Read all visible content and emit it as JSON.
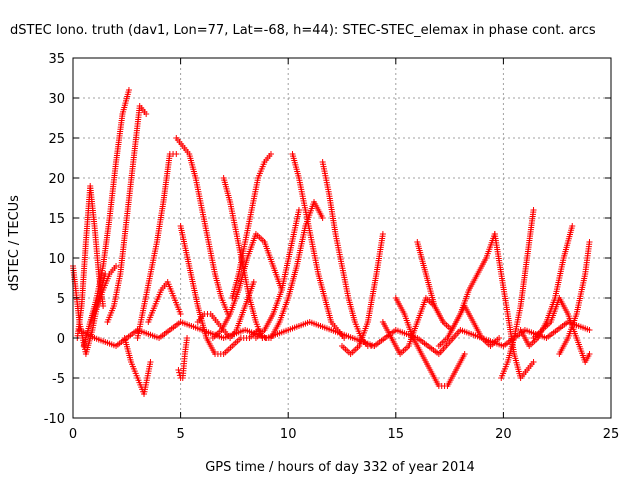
{
  "chart_data": {
    "type": "scatter",
    "title": "dSTEC Iono. truth (dav1, Lon=77, Lat=-68, h=44): STEC-STEC_elemax in phase cont. arcs",
    "xlabel": "GPS time / hours of day 332 of year 2014",
    "ylabel": "dSTEC  / TECUs",
    "xlim": [
      0,
      25
    ],
    "ylim": [
      -10,
      35
    ],
    "xticks": [
      0,
      5,
      10,
      15,
      20,
      25
    ],
    "yticks": [
      -10,
      -5,
      0,
      5,
      10,
      15,
      20,
      25,
      30,
      35
    ],
    "grid": true,
    "marker": "plus",
    "color": "#ff0000",
    "series": [
      {
        "x": [
          0.0,
          0.3,
          0.6,
          0.9,
          1.2,
          1.5
        ],
        "y": [
          9,
          2,
          -2,
          1,
          5,
          8
        ]
      },
      {
        "x": [
          0.2,
          0.4,
          0.6,
          0.8,
          1.0,
          1.2,
          1.4
        ],
        "y": [
          0,
          4,
          12,
          19,
          14,
          8,
          4
        ]
      },
      {
        "x": [
          0.8,
          1.1,
          1.4,
          1.7,
          2.0,
          2.3,
          2.6
        ],
        "y": [
          2,
          5,
          9,
          15,
          22,
          28,
          31
        ]
      },
      {
        "x": [
          0.5,
          0.8,
          1.1,
          1.4,
          1.7,
          2.0
        ],
        "y": [
          -1,
          2,
          4,
          6,
          8,
          9
        ]
      },
      {
        "x": [
          1.6,
          1.9,
          2.2,
          2.5,
          2.8,
          3.1,
          3.4
        ],
        "y": [
          2,
          4,
          8,
          15,
          22,
          29,
          28
        ]
      },
      {
        "x": [
          2.4,
          2.7,
          3.0,
          3.3,
          3.6
        ],
        "y": [
          0,
          -3,
          -5,
          -7,
          -3
        ]
      },
      {
        "x": [
          3.0,
          3.3,
          3.6,
          3.9,
          4.2,
          4.5,
          4.8
        ],
        "y": [
          0,
          4,
          8,
          12,
          17,
          23,
          23
        ]
      },
      {
        "x": [
          3.5,
          3.8,
          4.1,
          4.4,
          4.7,
          5.0
        ],
        "y": [
          2,
          4,
          6,
          7,
          5,
          3
        ]
      },
      {
        "x": [
          4.9,
          5.0,
          5.1,
          5.2,
          5.3
        ],
        "y": [
          -4,
          -5,
          -5,
          -2,
          0
        ]
      },
      {
        "x": [
          4.8,
          5.1,
          5.4,
          5.7,
          6.0,
          6.3,
          6.6,
          6.9,
          7.2
        ],
        "y": [
          25,
          24,
          23,
          20,
          16,
          12,
          8,
          5,
          3
        ]
      },
      {
        "x": [
          5.0,
          5.4,
          5.8,
          6.2,
          6.6,
          7.0,
          7.4,
          7.8,
          8.2,
          8.6
        ],
        "y": [
          14,
          9,
          4,
          0,
          -2,
          -2,
          -1,
          0,
          0,
          1
        ]
      },
      {
        "x": [
          5.8,
          6.1,
          6.4,
          6.7,
          7.0,
          7.3,
          7.6,
          8.0,
          8.4
        ],
        "y": [
          2,
          3,
          3,
          2,
          1,
          0,
          1,
          4,
          7
        ]
      },
      {
        "x": [
          7.0,
          7.3,
          7.6,
          7.9,
          8.2,
          8.5,
          8.8,
          9.1
        ],
        "y": [
          20,
          17,
          13,
          9,
          5,
          2,
          0,
          0
        ]
      },
      {
        "x": [
          7.4,
          7.7,
          8.0,
          8.3,
          8.6,
          8.9,
          9.2
        ],
        "y": [
          5,
          8,
          12,
          16,
          20,
          22,
          23
        ]
      },
      {
        "x": [
          6.5,
          6.9,
          7.3,
          7.7,
          8.1,
          8.5,
          8.9,
          9.3,
          9.7
        ],
        "y": [
          0,
          1,
          3,
          6,
          10,
          13,
          12,
          9,
          6
        ]
      },
      {
        "x": [
          8.5,
          8.9,
          9.3,
          9.7,
          10.1,
          10.5
        ],
        "y": [
          0,
          1,
          3,
          6,
          11,
          16
        ]
      },
      {
        "x": [
          10.2,
          10.5,
          10.8,
          11.1,
          11.4,
          11.7,
          12.0,
          12.3,
          12.6
        ],
        "y": [
          23,
          20,
          16,
          12,
          8,
          5,
          2,
          1,
          0
        ]
      },
      {
        "x": [
          9.2,
          9.6,
          10.0,
          10.4,
          10.8,
          11.2,
          11.6
        ],
        "y": [
          0,
          2,
          5,
          9,
          14,
          17,
          15
        ]
      },
      {
        "x": [
          11.6,
          11.9,
          12.2,
          12.5,
          12.8,
          13.1,
          13.4,
          13.7,
          14.0
        ],
        "y": [
          22,
          18,
          13,
          9,
          5,
          2,
          0,
          -1,
          -1
        ]
      },
      {
        "x": [
          12.5,
          12.9,
          13.3,
          13.7,
          14.1,
          14.4
        ],
        "y": [
          -1,
          -2,
          -1,
          2,
          8,
          13
        ]
      },
      {
        "x": [
          14.4,
          14.8,
          15.2,
          15.6,
          16.0,
          16.4,
          16.8,
          17.2
        ],
        "y": [
          2,
          0,
          -2,
          -1,
          2,
          5,
          4,
          2
        ]
      },
      {
        "x": [
          15.0,
          15.4,
          15.8,
          16.2,
          16.6,
          17.0,
          17.4,
          17.8,
          18.2
        ],
        "y": [
          5,
          3,
          0,
          -2,
          -4,
          -6,
          -6,
          -4,
          -2
        ]
      },
      {
        "x": [
          16.0,
          16.4,
          16.8,
          17.2,
          17.6,
          18.0,
          18.4,
          18.8,
          19.2,
          19.6
        ],
        "y": [
          12,
          8,
          4,
          2,
          1,
          3,
          6,
          8,
          10,
          13
        ]
      },
      {
        "x": [
          17.0,
          17.4,
          17.8,
          18.2,
          18.6,
          19.0,
          19.4,
          19.8
        ],
        "y": [
          -1,
          0,
          2,
          4,
          2,
          0,
          -1,
          0
        ]
      },
      {
        "x": [
          19.6,
          19.9,
          20.2,
          20.5,
          20.8,
          21.1,
          21.4
        ],
        "y": [
          13,
          8,
          3,
          -2,
          -5,
          -4,
          -3
        ]
      },
      {
        "x": [
          19.9,
          20.2,
          20.5,
          20.8,
          21.1,
          21.4
        ],
        "y": [
          -5,
          -3,
          0,
          4,
          10,
          16
        ]
      },
      {
        "x": [
          20.8,
          21.2,
          21.6,
          22.0,
          22.4,
          22.8,
          23.2
        ],
        "y": [
          1,
          -1,
          0,
          2,
          5,
          10,
          14
        ]
      },
      {
        "x": [
          21.4,
          21.8,
          22.2,
          22.6,
          23.0,
          23.4,
          23.8,
          24.0
        ],
        "y": [
          0,
          1,
          2,
          5,
          3,
          0,
          -3,
          -2
        ]
      },
      {
        "x": [
          22.6,
          23.0,
          23.4,
          23.8,
          24.0
        ],
        "y": [
          -2,
          0,
          3,
          8,
          12
        ]
      },
      {
        "x": [
          0.3,
          1.0,
          2.0,
          3.0,
          4.0,
          5.0,
          6.0,
          7.0,
          8.0,
          9.0,
          10.0,
          11.0,
          12.0,
          13.0,
          14.0,
          15.0,
          16.0,
          17.0,
          18.0,
          19.0,
          20.0,
          21.0,
          22.0,
          23.0,
          24.0
        ],
        "y": [
          1,
          0,
          -1,
          1,
          0,
          2,
          1,
          0,
          1,
          0,
          1,
          2,
          1,
          0,
          -1,
          1,
          0,
          -2,
          1,
          0,
          -1,
          1,
          0,
          2,
          1
        ]
      }
    ]
  }
}
